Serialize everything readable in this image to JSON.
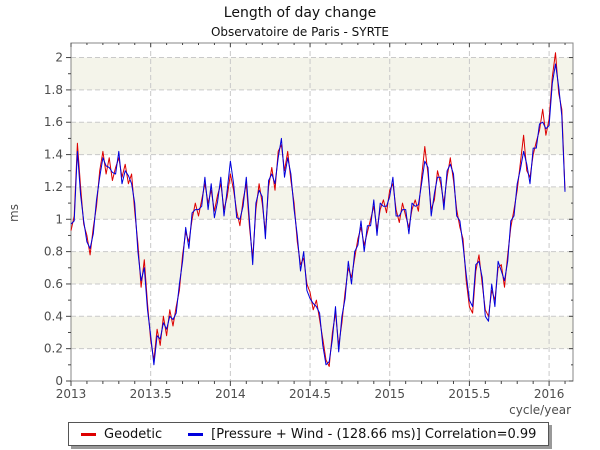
{
  "title": "Length of day change",
  "subtitle": "Observatoire de Paris - SYRTE",
  "colors": {
    "geodetic_line": "#dd0000",
    "pressure_wind_line": "#0000dd",
    "band_ivory": "#f4f4ea",
    "band_white": "#ffffff",
    "grid": "#c9c9c9",
    "frame": "#878787",
    "tick": "#444444",
    "tick_label": "#4d4d4d"
  },
  "chart_data": {
    "type": "line",
    "title": "Length of day change",
    "subtitle": "Observatoire de Paris - SYRTE",
    "xlabel": "cycle/year",
    "ylabel": "ms",
    "xlim": [
      2013,
      2016.15
    ],
    "ylim": [
      0,
      2.09
    ],
    "grid": "dashed-major",
    "legend_position": "bottom",
    "x_major_ticks": [
      2013,
      2013.5,
      2014,
      2014.5,
      2015,
      2015.5,
      2016
    ],
    "x_tick_labels": [
      "2013",
      "2013.5",
      "2014",
      "2014.5",
      "2015",
      "2015.5",
      "2016"
    ],
    "x_minor_step": 0.1,
    "y_major_ticks": [
      0,
      0.2,
      0.4,
      0.6,
      0.8,
      1,
      1.2,
      1.4,
      1.6,
      1.8,
      2
    ],
    "y_tick_labels": [
      "0",
      "0.2",
      "0.4",
      "0.6",
      "0.8",
      "1",
      "1.2",
      "1.4",
      "1.6",
      "1.8",
      "2"
    ],
    "y_minor_step": 0.1,
    "x": [
      2013.0,
      2013.02,
      2013.04,
      2013.06,
      2013.08,
      2013.1,
      2013.12,
      2013.14,
      2013.16,
      2013.18,
      2013.2,
      2013.22,
      2013.24,
      2013.26,
      2013.28,
      2013.3,
      2013.32,
      2013.34,
      2013.36,
      2013.38,
      2013.4,
      2013.42,
      2013.44,
      2013.46,
      2013.48,
      2013.5,
      2013.52,
      2013.54,
      2013.56,
      2013.58,
      2013.6,
      2013.62,
      2013.64,
      2013.66,
      2013.68,
      2013.7,
      2013.72,
      2013.74,
      2013.76,
      2013.78,
      2013.8,
      2013.82,
      2013.84,
      2013.86,
      2013.88,
      2013.9,
      2013.92,
      2013.94,
      2013.96,
      2013.98,
      2014.0,
      2014.02,
      2014.04,
      2014.06,
      2014.08,
      2014.1,
      2014.12,
      2014.14,
      2014.16,
      2014.18,
      2014.2,
      2014.22,
      2014.24,
      2014.26,
      2014.28,
      2014.3,
      2014.32,
      2014.34,
      2014.36,
      2014.38,
      2014.4,
      2014.42,
      2014.44,
      2014.46,
      2014.48,
      2014.5,
      2014.52,
      2014.54,
      2014.56,
      2014.58,
      2014.6,
      2014.62,
      2014.64,
      2014.66,
      2014.68,
      2014.7,
      2014.72,
      2014.74,
      2014.76,
      2014.78,
      2014.8,
      2014.82,
      2014.84,
      2014.86,
      2014.88,
      2014.9,
      2014.92,
      2014.94,
      2014.96,
      2014.98,
      2015.0,
      2015.02,
      2015.04,
      2015.06,
      2015.08,
      2015.1,
      2015.12,
      2015.14,
      2015.16,
      2015.18,
      2015.2,
      2015.22,
      2015.24,
      2015.26,
      2015.28,
      2015.3,
      2015.32,
      2015.34,
      2015.36,
      2015.38,
      2015.4,
      2015.42,
      2015.44,
      2015.46,
      2015.48,
      2015.5,
      2015.52,
      2015.54,
      2015.56,
      2015.58,
      2015.6,
      2015.62,
      2015.64,
      2015.66,
      2015.68,
      2015.7,
      2015.72,
      2015.74,
      2015.76,
      2015.78,
      2015.8,
      2015.82,
      2015.84,
      2015.86,
      2015.88,
      2015.9,
      2015.92,
      2015.94,
      2015.96,
      2015.98,
      2016.0,
      2016.02,
      2016.04,
      2016.06,
      2016.08,
      2016.1
    ],
    "series": [
      {
        "name": "Geodetic",
        "color": "#dd0000",
        "values": [
          0.93,
          1.02,
          1.47,
          1.2,
          0.97,
          0.9,
          0.78,
          0.95,
          1.08,
          1.3,
          1.42,
          1.28,
          1.38,
          1.24,
          1.32,
          1.38,
          1.26,
          1.34,
          1.22,
          1.28,
          1.05,
          0.85,
          0.58,
          0.75,
          0.48,
          0.25,
          0.13,
          0.32,
          0.22,
          0.4,
          0.28,
          0.44,
          0.34,
          0.46,
          0.56,
          0.78,
          0.92,
          0.86,
          1.0,
          1.1,
          1.02,
          1.12,
          1.22,
          1.1,
          1.18,
          1.05,
          1.15,
          1.22,
          1.06,
          1.14,
          1.28,
          1.18,
          1.05,
          0.96,
          1.12,
          1.22,
          0.95,
          0.76,
          1.06,
          1.22,
          1.1,
          0.92,
          1.2,
          1.32,
          1.18,
          1.42,
          1.46,
          1.3,
          1.42,
          1.24,
          1.1,
          0.86,
          0.72,
          0.76,
          0.6,
          0.55,
          0.44,
          0.5,
          0.38,
          0.26,
          0.13,
          0.09,
          0.3,
          0.42,
          0.22,
          0.36,
          0.55,
          0.7,
          0.64,
          0.76,
          0.88,
          0.95,
          0.84,
          0.92,
          1.0,
          1.08,
          0.94,
          1.06,
          1.12,
          1.04,
          1.18,
          1.22,
          1.06,
          0.98,
          1.1,
          1.02,
          0.95,
          1.06,
          1.12,
          1.05,
          1.26,
          1.45,
          1.28,
          1.06,
          1.12,
          1.3,
          1.22,
          1.1,
          1.26,
          1.38,
          1.24,
          1.06,
          0.95,
          0.88,
          0.62,
          0.46,
          0.42,
          0.68,
          0.78,
          0.6,
          0.44,
          0.4,
          0.56,
          0.5,
          0.7,
          0.72,
          0.58,
          0.78,
          0.95,
          1.06,
          1.18,
          1.35,
          1.52,
          1.3,
          1.26,
          1.4,
          1.48,
          1.55,
          1.68,
          1.52,
          1.62,
          1.88,
          2.03,
          1.78,
          1.68,
          1.18
        ]
      },
      {
        "name": "[Pressure + Wind - (128.66 ms)] Correlation=0.99",
        "color": "#0000dd",
        "values": [
          0.97,
          0.99,
          1.42,
          1.15,
          0.99,
          0.86,
          0.82,
          0.91,
          1.12,
          1.26,
          1.38,
          1.33,
          1.32,
          1.29,
          1.28,
          1.42,
          1.22,
          1.3,
          1.27,
          1.22,
          1.1,
          0.8,
          0.62,
          0.7,
          0.44,
          0.28,
          0.1,
          0.28,
          0.26,
          0.36,
          0.32,
          0.4,
          0.38,
          0.42,
          0.6,
          0.74,
          0.95,
          0.82,
          1.04,
          1.06,
          1.06,
          1.08,
          1.26,
          1.06,
          1.22,
          1.01,
          1.11,
          1.26,
          1.02,
          1.18,
          1.36,
          1.22,
          1.01,
          1.0,
          1.08,
          1.26,
          0.99,
          0.72,
          1.1,
          1.18,
          1.14,
          0.88,
          1.24,
          1.28,
          1.22,
          1.38,
          1.5,
          1.26,
          1.38,
          1.28,
          1.06,
          0.9,
          0.68,
          0.8,
          0.56,
          0.51,
          0.48,
          0.46,
          0.42,
          0.22,
          0.1,
          0.12,
          0.26,
          0.46,
          0.18,
          0.4,
          0.51,
          0.74,
          0.6,
          0.8,
          0.84,
          0.99,
          0.8,
          0.96,
          0.96,
          1.12,
          0.9,
          1.1,
          1.08,
          1.08,
          1.14,
          1.26,
          1.02,
          1.02,
          1.06,
          1.06,
          0.91,
          1.1,
          1.08,
          1.09,
          1.22,
          1.36,
          1.32,
          1.02,
          1.16,
          1.26,
          1.26,
          1.06,
          1.3,
          1.34,
          1.28,
          1.02,
          0.99,
          0.84,
          0.66,
          0.5,
          0.46,
          0.72,
          0.74,
          0.64,
          0.4,
          0.37,
          0.6,
          0.46,
          0.74,
          0.68,
          0.62,
          0.74,
          0.99,
          1.02,
          1.22,
          1.31,
          1.42,
          1.34,
          1.22,
          1.44,
          1.44,
          1.59,
          1.6,
          1.56,
          1.58,
          1.84,
          1.96,
          1.82,
          1.64,
          1.17
        ]
      }
    ]
  }
}
